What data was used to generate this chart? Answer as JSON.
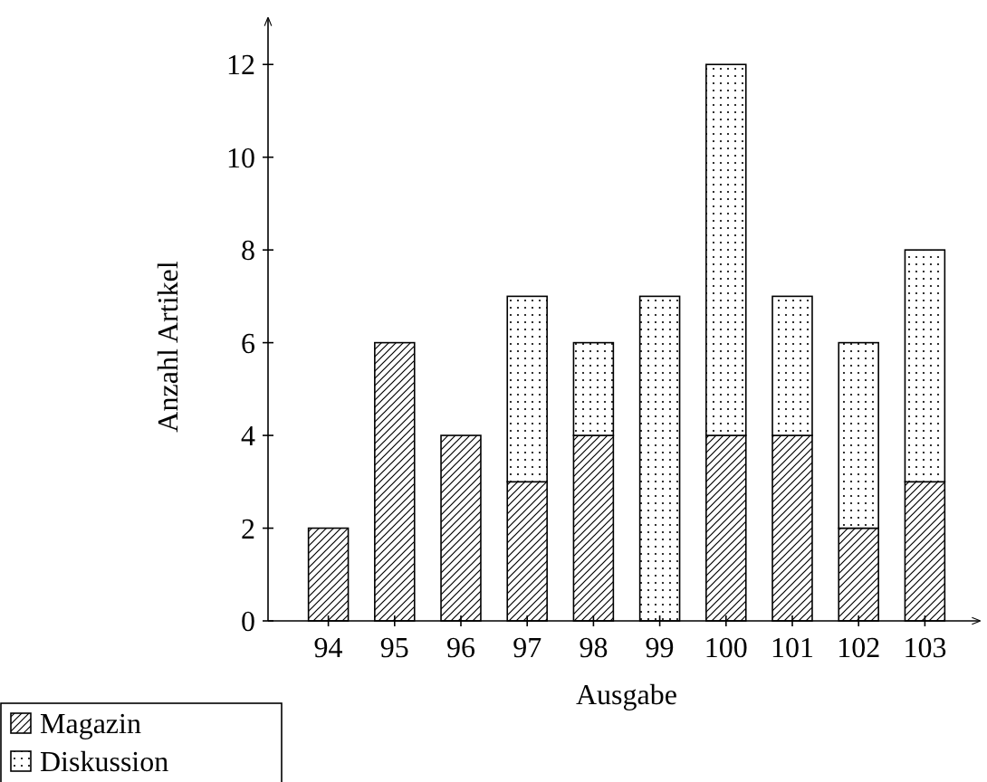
{
  "chart_data": {
    "type": "bar",
    "xlabel": "Ausgabe",
    "ylabel": "Anzahl Artikel",
    "categories": [
      "94",
      "95",
      "96",
      "97",
      "98",
      "99",
      "100",
      "101",
      "102",
      "103"
    ],
    "stacked": true,
    "ylim": [
      0,
      13
    ],
    "yticks": [
      0,
      2,
      4,
      6,
      8,
      10,
      12
    ],
    "legend": "bottom left",
    "grid": false,
    "series": [
      {
        "name": "Magazin",
        "color": "#000000",
        "values": [
          2,
          6,
          4,
          3,
          4,
          0,
          4,
          4,
          2,
          3
        ]
      },
      {
        "name": "Diskussion",
        "color": "#000000",
        "values": [
          0,
          0,
          0,
          4,
          2,
          7,
          8,
          3,
          4,
          5
        ]
      }
    ]
  }
}
